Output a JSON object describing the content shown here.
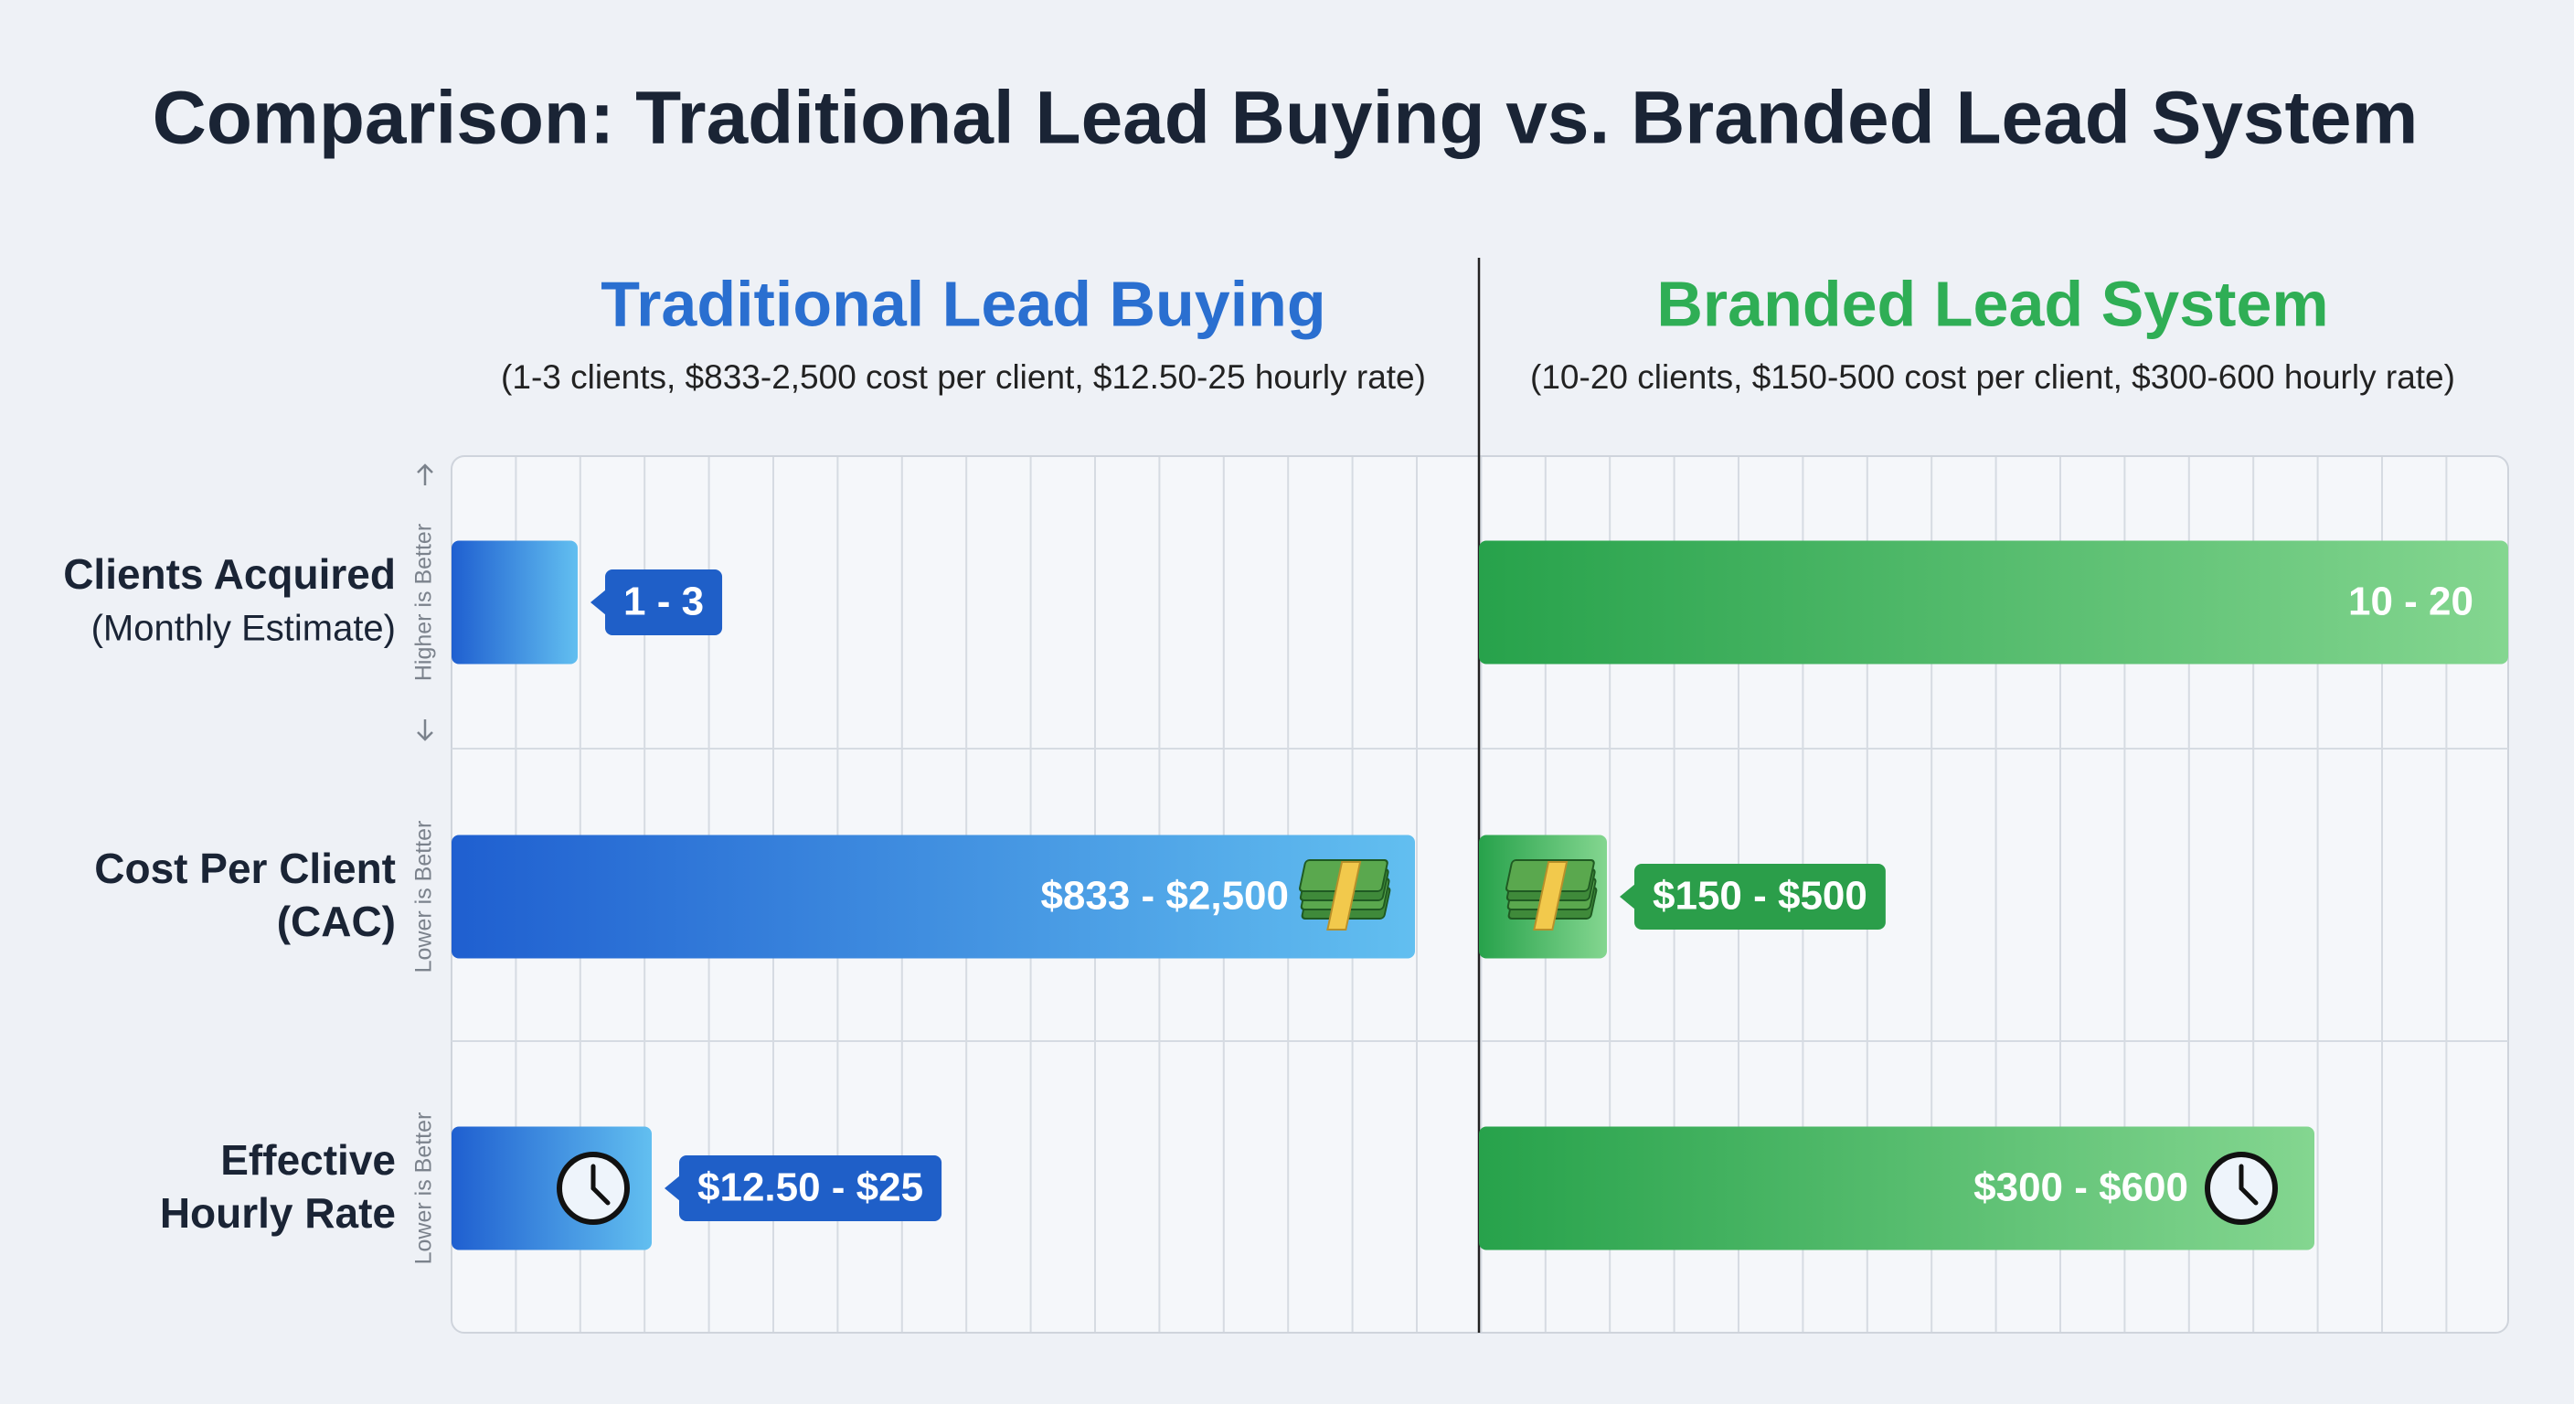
{
  "title": "Comparison: Traditional Lead Buying vs. Branded Lead System",
  "rows": [
    {
      "lines": [
        "Clients Acquired",
        "(Monthly Estimate)"
      ],
      "note": "Higher is Better"
    },
    {
      "lines": [
        "Cost Per Client",
        "(CAC)"
      ],
      "note": "Lower is Better"
    },
    {
      "lines": [
        "Effective",
        "Hourly Rate"
      ],
      "note": "Lower is Better"
    }
  ],
  "panels": [
    {
      "heading": "Traditional Lead Buying",
      "subheading": "(1-3 clients, $833-2,500 cost per client, $12.50-25 hourly rate)",
      "color": "#2a6fd0",
      "value_labels": [
        "1 - 3",
        "$833 - $2,500",
        "$12.50 - $25"
      ]
    },
    {
      "heading": "Branded Lead System",
      "subheading": "(10-20 clients, $150-500 cost per client, $300-600 hourly rate)",
      "color": "#2fae55",
      "value_labels": [
        "10 - 20",
        "$150 - $500",
        "$300 - $600"
      ]
    }
  ]
}
